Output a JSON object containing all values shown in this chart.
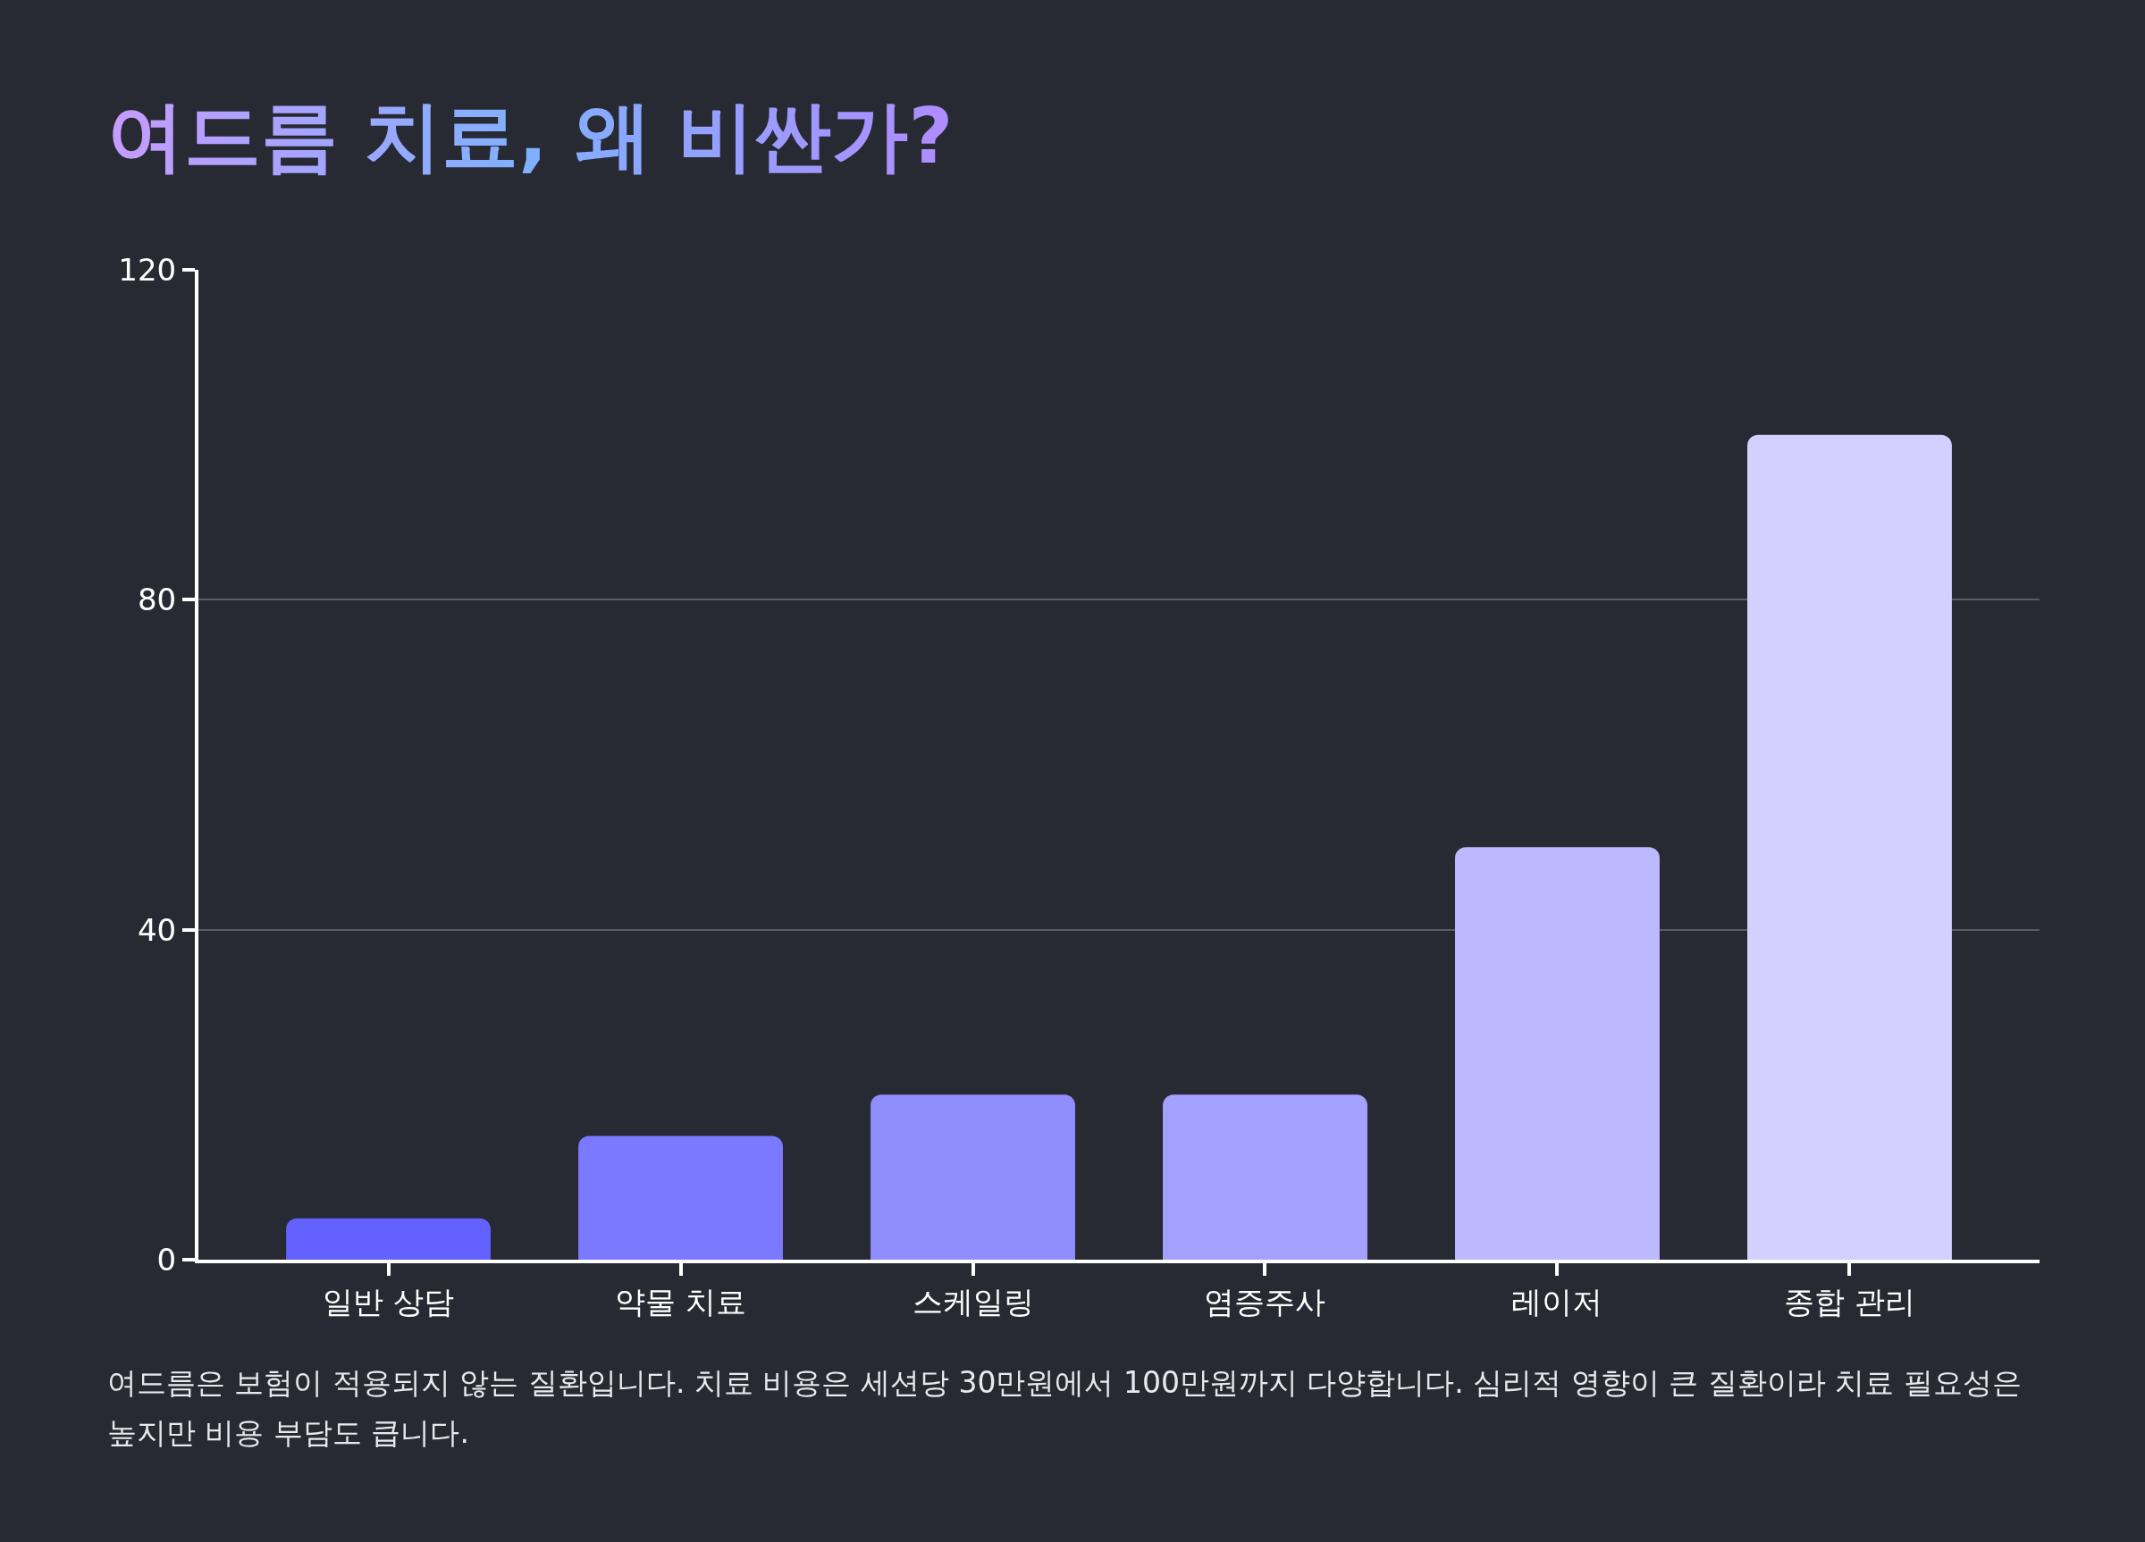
{
  "chart_data": {
    "type": "bar",
    "title": "여드름 치료, 왜 비싼가?",
    "categories": [
      "일반 상담",
      "약물 치료",
      "스케일링",
      "염증주사",
      "레이저",
      "종합 관리"
    ],
    "values": [
      5,
      15,
      20,
      20,
      50,
      100
    ],
    "colors": [
      "#6361ff",
      "#7b79ff",
      "#908dff",
      "#a5a2ff",
      "#bdb9ff",
      "#d3d0ff"
    ],
    "ylim": [
      0,
      120
    ],
    "yticks": [
      0,
      40,
      80,
      120
    ],
    "grid": "y",
    "annotations": [
      "여드름은 보험이 적용되지 않는 질환입니다. 치료 비용은 세션당 30만원에서 100만원까지 다양합니다. 심리적 영향이 큰 질환이라 치료 필요성은 높지만 비용 부담도 큽니다."
    ]
  }
}
